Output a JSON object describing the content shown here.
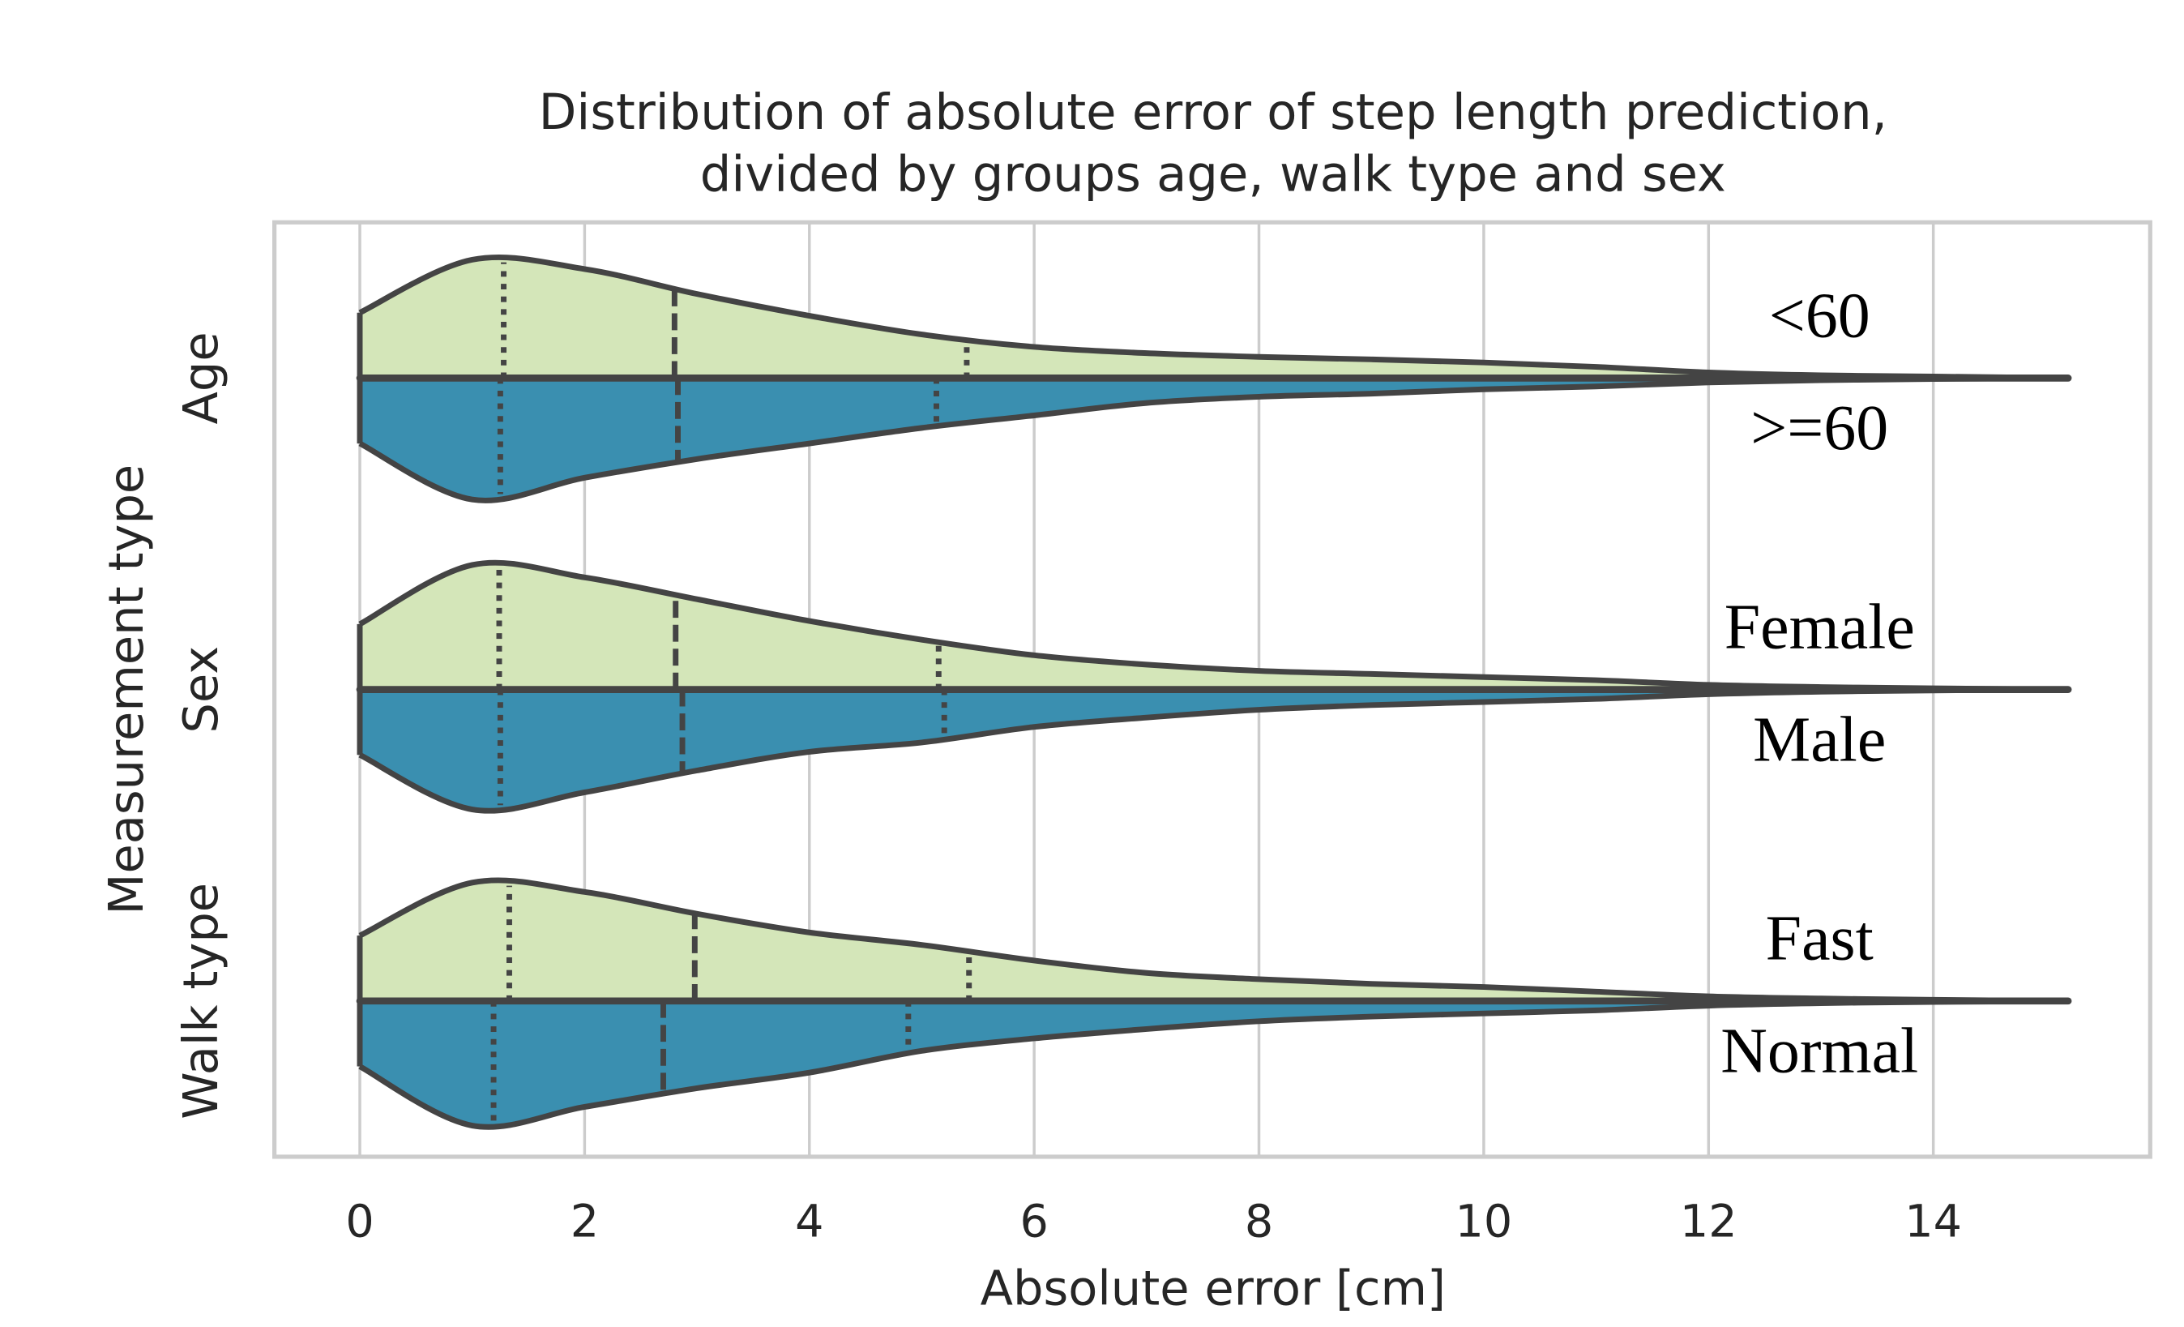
{
  "chart_data": {
    "type": "violin",
    "title": [
      "Distribution of absolute error of step length prediction,",
      "divided by groups age, walk type and sex"
    ],
    "xlabel": "Absolute error [cm]",
    "ylabel": "Measurement type",
    "categories": [
      "Age",
      "Sex",
      "Walk type"
    ],
    "xlim": [
      -0.76,
      15.93
    ],
    "xticks": [
      0,
      2,
      4,
      6,
      8,
      10,
      12,
      14
    ],
    "grid": true,
    "x": [
      0,
      1,
      2,
      3,
      4,
      5,
      6,
      7,
      8,
      9,
      10,
      11,
      12,
      13,
      14,
      15.2
    ],
    "groups": [
      {
        "halves": [
          {
            "name": "<60",
            "color": "#d4e6b9",
            "density": [
              0.21,
              0.38,
              0.35,
              0.27,
              0.2,
              0.14,
              0.1,
              0.08,
              0.068,
              0.06,
              0.05,
              0.036,
              0.018,
              0.009,
              0.005,
              0
            ],
            "quartiles": [
              1.28,
              2.8,
              5.4
            ]
          },
          {
            "name": ">=60",
            "color": "#3a8fb0",
            "density": [
              0.21,
              0.39,
              0.32,
              0.26,
              0.21,
              0.16,
              0.12,
              0.08,
              0.06,
              0.05,
              0.036,
              0.027,
              0.014,
              0.007,
              0.003,
              0
            ],
            "quartiles": [
              1.25,
              2.83,
              5.13
            ]
          }
        ]
      },
      {
        "halves": [
          {
            "name": "Female",
            "color": "#d4e6b9",
            "density": [
              0.21,
              0.4,
              0.36,
              0.29,
              0.22,
              0.16,
              0.11,
              0.08,
              0.06,
              0.05,
              0.04,
              0.03,
              0.015,
              0.008,
              0.004,
              0
            ],
            "quartiles": [
              1.24,
              2.81,
              5.15
            ]
          },
          {
            "name": "Male",
            "color": "#3a8fb0",
            "density": [
              0.21,
              0.385,
              0.33,
              0.26,
              0.2,
              0.17,
              0.12,
              0.09,
              0.065,
              0.05,
              0.04,
              0.03,
              0.015,
              0.007,
              0.003,
              0
            ],
            "quartiles": [
              1.25,
              2.87,
              5.2
            ]
          }
        ]
      },
      {
        "halves": [
          {
            "name": "Fast",
            "color": "#d4e6b9",
            "density": [
              0.21,
              0.38,
              0.35,
              0.28,
              0.22,
              0.18,
              0.13,
              0.09,
              0.07,
              0.055,
              0.045,
              0.03,
              0.015,
              0.008,
              0.004,
              0
            ],
            "quartiles": [
              1.33,
              2.98,
              5.42
            ]
          },
          {
            "name": "Normal",
            "color": "#3a8fb0",
            "density": [
              0.21,
              0.4,
              0.34,
              0.28,
              0.23,
              0.16,
              0.12,
              0.09,
              0.065,
              0.05,
              0.04,
              0.03,
              0.015,
              0.007,
              0.003,
              0
            ],
            "quartiles": [
              1.19,
              2.7,
              4.88
            ]
          }
        ]
      }
    ]
  }
}
